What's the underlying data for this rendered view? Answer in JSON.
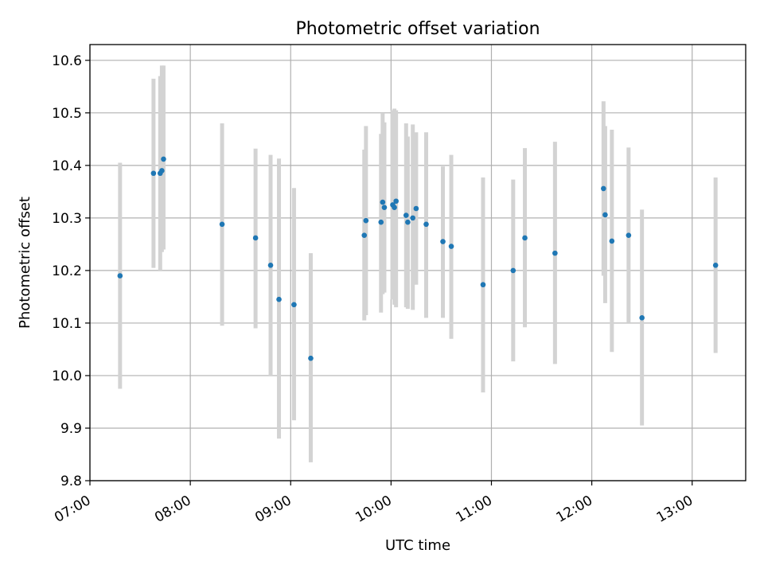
{
  "chart_data": {
    "type": "scatter",
    "title": "Photometric offset variation",
    "xlabel": "UTC time",
    "ylabel": "Photometric offset",
    "x_unit": "UTC time (HH:MM)",
    "xlim": [
      "07:00",
      "13:32"
    ],
    "ylim": [
      9.8,
      10.63
    ],
    "x_ticks": [
      "07:00",
      "08:00",
      "09:00",
      "10:00",
      "11:00",
      "12:00",
      "13:00"
    ],
    "y_ticks": [
      "9.8",
      "9.9",
      "10.0",
      "10.1",
      "10.2",
      "10.3",
      "10.4",
      "10.5",
      "10.6"
    ],
    "grid": true,
    "marker_color": "#1f77b4",
    "errorbar_color": "#d3d3d3",
    "points": [
      {
        "x": "07:18",
        "y": 10.19,
        "lo": 9.975,
        "hi": 10.405
      },
      {
        "x": "07:38",
        "y": 10.385,
        "lo": 10.205,
        "hi": 10.565
      },
      {
        "x": "07:42",
        "y": 10.385,
        "lo": 10.2,
        "hi": 10.57
      },
      {
        "x": "07:43",
        "y": 10.39,
        "lo": 10.235,
        "hi": 10.59
      },
      {
        "x": "07:44",
        "y": 10.412,
        "lo": 10.24,
        "hi": 10.59
      },
      {
        "x": "08:19",
        "y": 10.288,
        "lo": 10.095,
        "hi": 10.48
      },
      {
        "x": "08:39",
        "y": 10.262,
        "lo": 10.09,
        "hi": 10.432
      },
      {
        "x": "08:48",
        "y": 10.21,
        "lo": 10.0,
        "hi": 10.42
      },
      {
        "x": "08:53",
        "y": 10.145,
        "lo": 9.88,
        "hi": 10.413
      },
      {
        "x": "09:02",
        "y": 10.135,
        "lo": 9.915,
        "hi": 10.357
      },
      {
        "x": "09:12",
        "y": 10.033,
        "lo": 9.835,
        "hi": 10.233
      },
      {
        "x": "09:44",
        "y": 10.267,
        "lo": 10.105,
        "hi": 10.43
      },
      {
        "x": "09:45",
        "y": 10.295,
        "lo": 10.115,
        "hi": 10.475
      },
      {
        "x": "09:54",
        "y": 10.292,
        "lo": 10.12,
        "hi": 10.46
      },
      {
        "x": "09:55",
        "y": 10.33,
        "lo": 10.155,
        "hi": 10.5
      },
      {
        "x": "09:56",
        "y": 10.32,
        "lo": 10.158,
        "hi": 10.482
      },
      {
        "x": "10:01",
        "y": 10.325,
        "lo": 10.145,
        "hi": 10.505
      },
      {
        "x": "10:02",
        "y": 10.32,
        "lo": 10.135,
        "hi": 10.508
      },
      {
        "x": "10:03",
        "y": 10.332,
        "lo": 10.13,
        "hi": 10.505
      },
      {
        "x": "10:09",
        "y": 10.305,
        "lo": 10.13,
        "hi": 10.48
      },
      {
        "x": "10:10",
        "y": 10.292,
        "lo": 10.127,
        "hi": 10.455
      },
      {
        "x": "10:13",
        "y": 10.3,
        "lo": 10.125,
        "hi": 10.478
      },
      {
        "x": "10:15",
        "y": 10.318,
        "lo": 10.173,
        "hi": 10.463
      },
      {
        "x": "10:21",
        "y": 10.288,
        "lo": 10.11,
        "hi": 10.463
      },
      {
        "x": "10:31",
        "y": 10.255,
        "lo": 10.11,
        "hi": 10.398
      },
      {
        "x": "10:36",
        "y": 10.246,
        "lo": 10.07,
        "hi": 10.42
      },
      {
        "x": "10:55",
        "y": 10.173,
        "lo": 9.968,
        "hi": 10.377
      },
      {
        "x": "11:13",
        "y": 10.2,
        "lo": 10.027,
        "hi": 10.373
      },
      {
        "x": "11:20",
        "y": 10.262,
        "lo": 10.092,
        "hi": 10.433
      },
      {
        "x": "11:38",
        "y": 10.233,
        "lo": 10.022,
        "hi": 10.445
      },
      {
        "x": "12:07",
        "y": 10.356,
        "lo": 10.19,
        "hi": 10.522
      },
      {
        "x": "12:08",
        "y": 10.306,
        "lo": 10.138,
        "hi": 10.475
      },
      {
        "x": "12:12",
        "y": 10.256,
        "lo": 10.045,
        "hi": 10.468
      },
      {
        "x": "12:22",
        "y": 10.267,
        "lo": 10.1,
        "hi": 10.434
      },
      {
        "x": "12:30",
        "y": 10.11,
        "lo": 9.905,
        "hi": 10.316
      },
      {
        "x": "13:14",
        "y": 10.21,
        "lo": 10.043,
        "hi": 10.377
      }
    ]
  }
}
